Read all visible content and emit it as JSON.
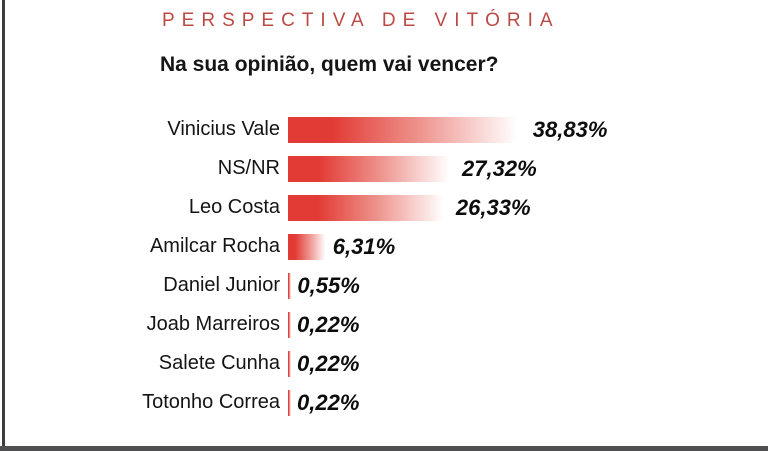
{
  "frame": {
    "left_line_color": "#3e3e40",
    "bottom_bar_color": "#4f4f51"
  },
  "header": {
    "title": "PERSPECTIVA DE VITÓRIA",
    "title_color": "#bc4a44",
    "subtitle": "Na sua opinião, quem vai vencer?"
  },
  "chart_data": {
    "type": "bar",
    "orientation": "horizontal",
    "title": "PERSPECTIVA DE VITÓRIA",
    "question": "Na sua opinião, quem vai vencer?",
    "categories": [
      "Vinicius Vale",
      "NS/NR",
      "Leo Costa",
      "Amilcar Rocha",
      "Daniel Junior",
      "Joab Marreiros",
      "Salete Cunha",
      "Totonho Correa"
    ],
    "values": [
      38.83,
      27.32,
      26.33,
      6.31,
      0.55,
      0.22,
      0.22,
      0.22
    ],
    "value_labels": [
      "38,83%",
      "27,32%",
      "26,33%",
      "6,31%",
      "0,55%",
      "0,22%",
      "0,22%",
      "0,22%"
    ],
    "bar_color_start": "#e23a34",
    "bar_color_mid": "#ee938d",
    "bar_color_end": "#ffffff",
    "xlim": [
      0,
      40
    ],
    "grid": false,
    "legend": false
  }
}
